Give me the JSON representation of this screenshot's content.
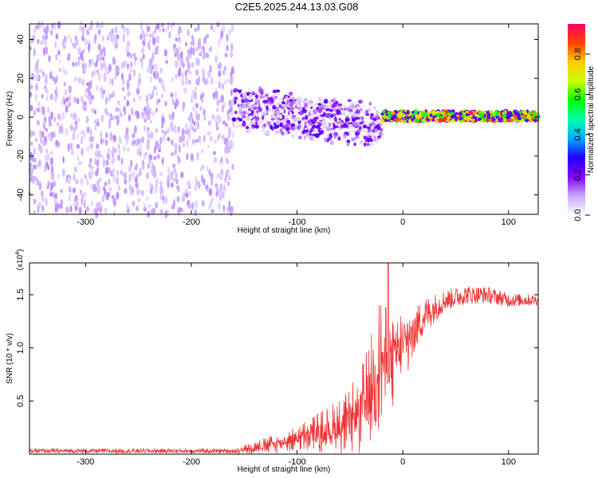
{
  "title": "C2E5.2025.244.13.03.G08",
  "chart_data": [
    {
      "type": "heatmap",
      "name": "spectrogram",
      "xlabel": "Height of straight line (km)",
      "ylabel": "Frequency (Hz)",
      "xlim": [
        -353,
        128
      ],
      "ylim": [
        -50,
        48
      ],
      "xticks": [
        -300,
        -200,
        -100,
        0,
        100
      ],
      "yticks": [
        -40,
        -20,
        0,
        20,
        40
      ],
      "colorbar": {
        "label": "Normalized spectral amplitude",
        "range": [
          0.0,
          0.95
        ],
        "ticks": [
          "0.0",
          "0.2",
          "0.4",
          "0.6",
          "0.8"
        ],
        "tick_values": [
          0.0,
          0.2,
          0.4,
          0.6,
          0.8
        ],
        "colors": [
          "#ffffff",
          "#c8a8ff",
          "#8800ff",
          "#2200ff",
          "#00aaff",
          "#00ffaa",
          "#00ff00",
          "#ccff00",
          "#ffcc00",
          "#ff4400",
          "#ff0066"
        ]
      },
      "regions": [
        {
          "x_range": [
            -353,
            -160
          ],
          "freq_center": 0,
          "freq_spread": 50,
          "amplitude": 0.08,
          "description": "broadband noise"
        },
        {
          "x_range": [
            -160,
            -20
          ],
          "freq_center_start": 5,
          "freq_center_end": -5,
          "freq_spread": 10,
          "amplitude": 0.2
        },
        {
          "x_range": [
            -20,
            128
          ],
          "freq_center": 0,
          "freq_spread": 3,
          "amplitude": 0.9
        }
      ]
    },
    {
      "type": "line",
      "name": "snr",
      "xlabel": "Height of straight line (km)",
      "ylabel": "SNR (10 * v/v)",
      "y_multiplier": "(x10",
      "y_multiplier_exp": "4",
      "y_multiplier_close": ")",
      "xlim": [
        -353,
        128
      ],
      "ylim": [
        0,
        1.8
      ],
      "xticks": [
        -300,
        -200,
        -100,
        0,
        100
      ],
      "yticks": [
        0.5,
        1.0,
        1.5
      ],
      "ytick_labels": [
        "0.5",
        "1.0",
        "1.5"
      ],
      "color": "#ee3333",
      "series": [
        {
          "name": "SNR",
          "x": [
            -353,
            -250,
            -160,
            -140,
            -120,
            -100,
            -80,
            -60,
            -50,
            -40,
            -30,
            -25,
            -20,
            -15,
            -10,
            0,
            10,
            20,
            40,
            60,
            80,
            100,
            128
          ],
          "y": [
            0.03,
            0.03,
            0.03,
            0.06,
            0.1,
            0.15,
            0.2,
            0.25,
            0.3,
            0.4,
            0.6,
            0.8,
            0.9,
            0.85,
            0.9,
            1.0,
            1.15,
            1.3,
            1.45,
            1.5,
            1.5,
            1.45,
            1.45
          ]
        }
      ],
      "noise_amplitude": [
        {
          "x": -353,
          "amp": 0.02
        },
        {
          "x": -160,
          "amp": 0.02
        },
        {
          "x": -100,
          "amp": 0.08
        },
        {
          "x": -50,
          "amp": 0.2
        },
        {
          "x": -20,
          "amp": 0.4
        },
        {
          "x": 0,
          "amp": 0.25
        },
        {
          "x": 40,
          "amp": 0.1
        },
        {
          "x": 128,
          "amp": 0.05
        }
      ],
      "spike": {
        "x": -14,
        "y": 1.8
      }
    }
  ]
}
